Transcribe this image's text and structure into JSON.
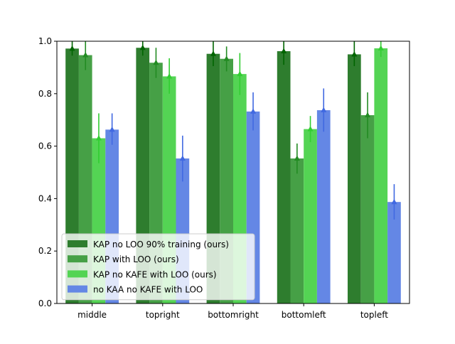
{
  "chart_data": {
    "type": "bar",
    "title": "",
    "xlabel": "",
    "ylabel": "",
    "ylim": [
      0,
      1.0
    ],
    "yticks": [
      "0.0",
      "0.2",
      "0.4",
      "0.6",
      "0.8",
      "1.0"
    ],
    "categories": [
      "middle",
      "topright",
      "bottomright",
      "bottomleft",
      "topleft"
    ],
    "legend_position": "lower-left",
    "grid": false,
    "series": [
      {
        "name": "KAP no LOO 90% training (ours)",
        "color": "#2e7d2e",
        "marker_color": "#006400",
        "values": [
          0.972,
          0.975,
          0.952,
          0.962,
          0.95
        ],
        "err_low": [
          0.945,
          0.945,
          0.905,
          0.91,
          0.905
        ],
        "err_high": [
          1.0,
          1.0,
          1.0,
          1.0,
          1.0
        ]
      },
      {
        "name": "KAP with LOO (ours)",
        "color": "#46a046",
        "marker_color": "#228b22",
        "values": [
          0.947,
          0.918,
          0.933,
          0.553,
          0.718
        ],
        "err_low": [
          0.89,
          0.86,
          0.885,
          0.495,
          0.63
        ],
        "err_high": [
          1.0,
          0.975,
          0.98,
          0.61,
          0.805
        ]
      },
      {
        "name": "KAP no KAFE with LOO (ours)",
        "color": "#54d454",
        "marker_color": "#32cd32",
        "values": [
          0.63,
          0.866,
          0.875,
          0.665,
          0.973
        ],
        "err_low": [
          0.535,
          0.8,
          0.795,
          0.615,
          0.94
        ],
        "err_high": [
          0.725,
          0.935,
          0.955,
          0.715,
          1.0
        ]
      },
      {
        "name": "no KAA no KAFE with LOO",
        "color": "#6487e5",
        "marker_color": "#4169e1",
        "values": [
          0.663,
          0.553,
          0.732,
          0.737,
          0.387
        ],
        "err_low": [
          0.605,
          0.465,
          0.66,
          0.655,
          0.32
        ],
        "err_high": [
          0.725,
          0.64,
          0.805,
          0.82,
          0.455
        ]
      }
    ]
  }
}
